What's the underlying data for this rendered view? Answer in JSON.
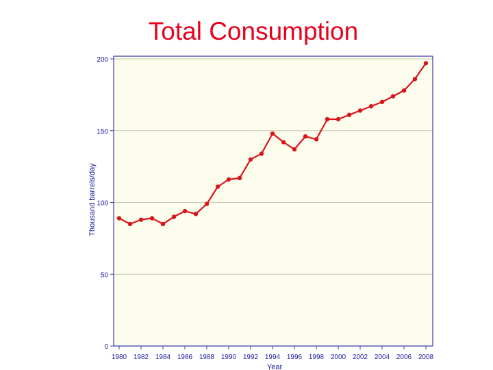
{
  "slide": {
    "title": "Total Consumption"
  },
  "colors": {
    "title": "#e8001c",
    "plot_background": "#fdfdee",
    "series_line": "#d9151b",
    "axes": "#3c3cb0",
    "grid": "#c8c8b4",
    "tick_text": "#1a1aa0"
  },
  "chart_data": {
    "type": "line",
    "title": "",
    "xlabel": "Year",
    "ylabel": "Thousand barrels/day",
    "xlim": [
      1980,
      2008
    ],
    "ylim": [
      0,
      200
    ],
    "x_ticks": [
      1980,
      1982,
      1984,
      1986,
      1988,
      1990,
      1992,
      1994,
      1996,
      1998,
      2000,
      2002,
      2004,
      2006,
      2008
    ],
    "y_ticks": [
      0,
      50,
      100,
      150,
      200
    ],
    "grid": "horizontal",
    "legend": "none",
    "series": [
      {
        "x": [
          1980,
          1981,
          1982,
          1983,
          1984,
          1985,
          1986,
          1987,
          1988,
          1989,
          1990,
          1991,
          1992,
          1993,
          1994,
          1995,
          1996,
          1997,
          1998,
          1999,
          2000,
          2001,
          2002,
          2003,
          2004,
          2005,
          2006,
          2007,
          2008
        ],
        "values": [
          89,
          85,
          88,
          89,
          85,
          90,
          94,
          92,
          99,
          111,
          116,
          117,
          130,
          134,
          148,
          142,
          137,
          146,
          144,
          158,
          158,
          161,
          164,
          167,
          170,
          174,
          178,
          186,
          197
        ]
      }
    ]
  }
}
